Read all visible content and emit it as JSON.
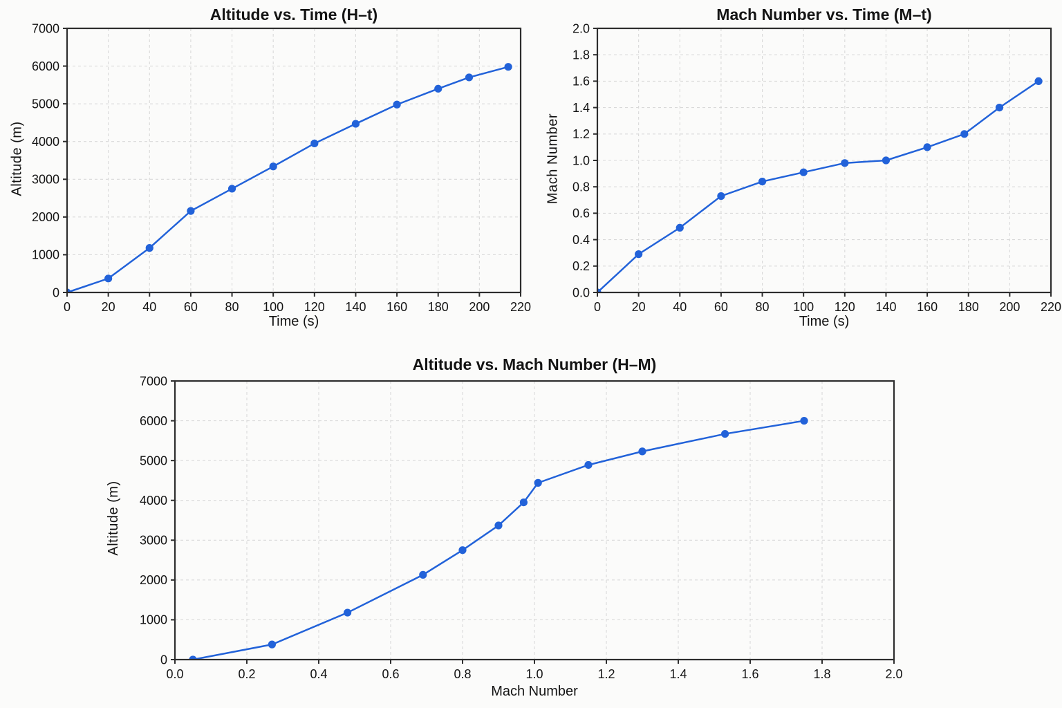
{
  "page": {
    "background": "#fbfbfa"
  },
  "colors": {
    "line": "#2262d9",
    "marker": "#2262d9",
    "grid": "#d9d9d9",
    "spine": "#2d2d2d",
    "text": "#141414"
  },
  "chart_data": [
    {
      "id": "altitude-vs-time",
      "type": "line",
      "title": "Altitude vs. Time (H–t)",
      "xlabel": "Time (s)",
      "ylabel": "Altitude (m)",
      "xlim": [
        0,
        220
      ],
      "ylim": [
        0,
        7000
      ],
      "grid": true,
      "legend": "none",
      "xticks": [
        0,
        20,
        40,
        60,
        80,
        100,
        120,
        140,
        160,
        180,
        200,
        220
      ],
      "xtick_labels": [
        "0",
        "20",
        "40",
        "60",
        "80",
        "100",
        "120",
        "140",
        "160",
        "180",
        "200",
        "220"
      ],
      "yticks": [
        0,
        1000,
        2000,
        3000,
        4000,
        5000,
        6000,
        7000
      ],
      "ytick_labels": [
        "0",
        "1000",
        "2000",
        "3000",
        "4000",
        "5000",
        "6000",
        "7000"
      ],
      "x": [
        0,
        20,
        40,
        60,
        80,
        100,
        120,
        140,
        160,
        180,
        195,
        214
      ],
      "y": [
        0,
        370,
        1180,
        2160,
        2750,
        3340,
        3950,
        4470,
        4980,
        5400,
        5700,
        5980
      ]
    },
    {
      "id": "mach-vs-time",
      "type": "line",
      "title": "Mach Number vs. Time (M–t)",
      "xlabel": "Time (s)",
      "ylabel": "Mach Number",
      "xlim": [
        0,
        220
      ],
      "ylim": [
        0,
        2.0
      ],
      "grid": true,
      "legend": "none",
      "xticks": [
        0,
        20,
        40,
        60,
        80,
        100,
        120,
        140,
        160,
        180,
        200,
        220
      ],
      "xtick_labels": [
        "0",
        "20",
        "40",
        "60",
        "80",
        "100",
        "120",
        "140",
        "160",
        "180",
        "200",
        "220"
      ],
      "yticks": [
        0,
        0.2,
        0.4,
        0.6,
        0.8,
        1.0,
        1.2,
        1.4,
        1.6,
        1.8,
        2.0
      ],
      "ytick_labels": [
        "0.0",
        "0.2",
        "0.4",
        "0.6",
        "0.8",
        "1.0",
        "1.2",
        "1.4",
        "1.6",
        "1.8",
        "2.0"
      ],
      "x": [
        0,
        20,
        40,
        60,
        80,
        100,
        120,
        140,
        160,
        178,
        195,
        214
      ],
      "y": [
        0.0,
        0.29,
        0.49,
        0.73,
        0.84,
        0.91,
        0.98,
        1.0,
        1.1,
        1.2,
        1.4,
        1.6
      ]
    },
    {
      "id": "altitude-vs-mach",
      "type": "line",
      "title": "Altitude vs. Mach Number (H–M)",
      "xlabel": "Mach Number",
      "ylabel": "Altitude (m)",
      "xlim": [
        0,
        2.0
      ],
      "ylim": [
        0,
        7000
      ],
      "grid": true,
      "legend": "none",
      "xticks": [
        0,
        0.2,
        0.4,
        0.6,
        0.8,
        1.0,
        1.2,
        1.4,
        1.6,
        1.8,
        2.0
      ],
      "xtick_labels": [
        "0.0",
        "0.2",
        "0.4",
        "0.6",
        "0.8",
        "1.0",
        "1.2",
        "1.4",
        "1.6",
        "1.8",
        "2.0"
      ],
      "yticks": [
        0,
        1000,
        2000,
        3000,
        4000,
        5000,
        6000,
        7000
      ],
      "ytick_labels": [
        "0",
        "1000",
        "2000",
        "3000",
        "4000",
        "5000",
        "6000",
        "7000"
      ],
      "x": [
        0.05,
        0.27,
        0.48,
        0.69,
        0.8,
        0.9,
        0.97,
        1.01,
        1.15,
        1.3,
        1.53,
        1.75
      ],
      "y": [
        0,
        380,
        1180,
        2130,
        2750,
        3370,
        3950,
        4440,
        4890,
        5230,
        5670,
        6000
      ]
    }
  ]
}
